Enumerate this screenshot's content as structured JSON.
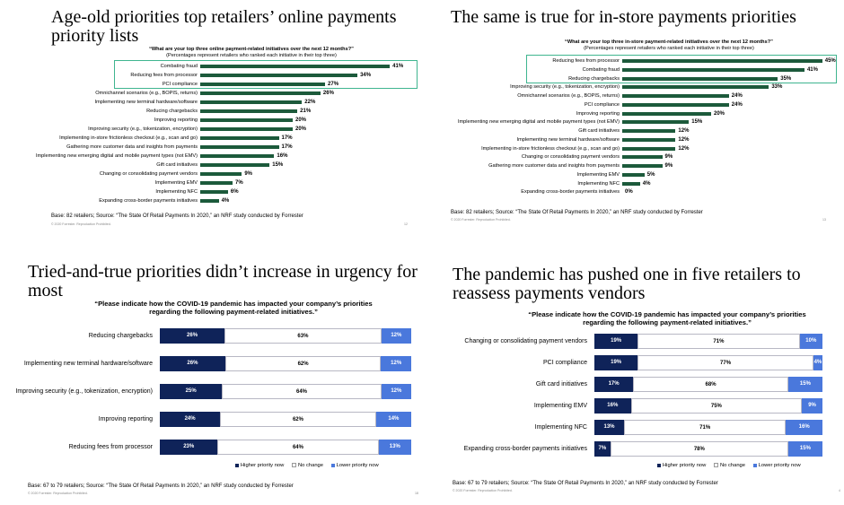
{
  "panels": [
    {
      "title": "Age-old priorities top retailers’ online payments priority lists",
      "question": "“What are your top three online payment-related initiatives over the next 12 months?”",
      "subquestion": "(Percentages represent retailers who ranked each initiative in their top three)",
      "base": "Base: 82 retailers; Source: “The State Of Retail Payments In 2020,” an NRF study conducted by Forrester",
      "copyright": "© 2020 Forrester. Reproduction Prohibited.",
      "page_number": "12"
    },
    {
      "title": "The same is true for in-store payments priorities",
      "question": "“What are your top three in-store payment-related initiatives over the next 12 months?”",
      "subquestion": "(Percentages represent retailers who ranked each initiative in their top three)",
      "base": "Base: 82 retailers; Source: “The State Of Retail Payments In 2020,” an NRF study conducted by Forrester",
      "copyright": "© 2020 Forrester. Reproduction Prohibited.",
      "page_number": "13"
    },
    {
      "title": "Tried-and-true priorities didn’t increase in urgency for most",
      "question": "“Please indicate how the COVID-19 pandemic has impacted your company’s priorities regarding the following payment-related initiatives.”",
      "base": "Base: 67 to 79 retailers; Source: “The State Of Retail Payments In 2020,” an NRF study conducted by Forrester",
      "copyright": "© 2020 Forrester. Reproduction Prohibited.",
      "page_number": "18"
    },
    {
      "title": "The pandemic has pushed one in five retailers to reassess payments vendors",
      "question": "“Please indicate how the COVID-19 pandemic has impacted your company’s priorities regarding the following payment-related initiatives.”",
      "base": "Base: 67 to 79 retailers; Source: “The State Of Retail Payments In 2020,” an NRF study conducted by Forrester",
      "copyright": "© 2020 Forrester. Reproduction Prohibited.",
      "page_number": "4"
    }
  ],
  "colors": {
    "bar_green": "#1c5a3b",
    "highlight_box": "#3fb58f",
    "higher": "#0f2359",
    "nochange": "#ffffff",
    "lower": "#4a78dc"
  },
  "chart_data": [
    {
      "type": "bar",
      "orientation": "horizontal",
      "categories": [
        "Combating fraud",
        "Reducing fees from processor",
        "PCI compliance",
        "Omnichannel scenarios (e.g., BOPIS, returns)",
        "Implementing new terminal hardware/software",
        "Reducing chargebacks",
        "Improving reporting",
        "Improving security (e.g., tokenization, encryption)",
        "Implementing in-store frictionless checkout (e.g., scan and go)",
        "Gathering more customer data and insights from payments",
        "Implementing new emerging digital and mobile payment types (not EMV)",
        "Gift card initiatives",
        "Changing or consolidating payment vendors",
        "Implementing EMV",
        "Implementing NFC",
        "Expanding cross-border payments initiatives"
      ],
      "values": [
        41,
        34,
        27,
        26,
        22,
        21,
        20,
        20,
        17,
        17,
        16,
        15,
        9,
        7,
        6,
        4
      ],
      "labels": [
        "41%",
        "34%",
        "27%",
        "26%",
        "22%",
        "21%",
        "20%",
        "20%",
        "17%",
        "17%",
        "16%",
        "15%",
        "9%",
        "7%",
        "6%",
        "4%"
      ],
      "highlighted_top": 3
    },
    {
      "type": "bar",
      "orientation": "horizontal",
      "categories": [
        "Reducing fees from processor",
        "Combating fraud",
        "Reducing chargebacks",
        "Improving security (e.g., tokenization, encryption)",
        "Omnichannel scenarios (e.g., BOPIS, returns)",
        "PCI compliance",
        "Improving reporting",
        "Implementing new emerging digital and mobile payment types (not EMV)",
        "Gift card initiatives",
        "Implementing new terminal hardware/software",
        "Implementing in-store frictionless checkout (e.g., scan and go)",
        "Changing or consolidating payment vendors",
        "Gathering more customer data and insights from payments",
        "Implementing EMV",
        "Implementing NFC",
        "Expanding cross-border payments initiatives"
      ],
      "values": [
        45,
        41,
        35,
        33,
        24,
        24,
        20,
        15,
        12,
        12,
        12,
        9,
        9,
        5,
        4,
        0
      ],
      "labels": [
        "45%",
        "41%",
        "35%",
        "33%",
        "24%",
        "24%",
        "20%",
        "15%",
        "12%",
        "12%",
        "12%",
        "9%",
        "9%",
        "5%",
        "4%",
        "0%"
      ],
      "highlighted_top": 3
    },
    {
      "type": "bar",
      "stacked": true,
      "orientation": "horizontal",
      "categories": [
        "Reducing chargebacks",
        "Implementing new terminal hardware/software",
        "Improving security (e.g., tokenization, encryption)",
        "Improving reporting",
        "Reducing fees from processor"
      ],
      "series": [
        {
          "name": "Higher priority now",
          "values": [
            26,
            26,
            25,
            24,
            23
          ],
          "labels": [
            "26%",
            "26%",
            "25%",
            "24%",
            "23%"
          ]
        },
        {
          "name": "No change",
          "values": [
            63,
            62,
            64,
            62,
            64
          ],
          "labels": [
            "63%",
            "62%",
            "64%",
            "62%",
            "64%"
          ]
        },
        {
          "name": "Lower priority now",
          "values": [
            12,
            12,
            12,
            14,
            13
          ],
          "labels": [
            "12%",
            "12%",
            "12%",
            "14%",
            "13%"
          ]
        }
      ],
      "legend": "bottom"
    },
    {
      "type": "bar",
      "stacked": true,
      "orientation": "horizontal",
      "categories": [
        "Changing or consolidating payment vendors",
        "PCI compliance",
        "Gift card initiatives",
        "Implementing EMV",
        "Implementing NFC",
        "Expanding cross-border payments initiatives"
      ],
      "series": [
        {
          "name": "Higher priority now",
          "values": [
            19,
            19,
            17,
            16,
            13,
            7
          ],
          "labels": [
            "19%",
            "19%",
            "17%",
            "16%",
            "13%",
            "7%"
          ]
        },
        {
          "name": "No change",
          "values": [
            71,
            77,
            68,
            75,
            71,
            78
          ],
          "labels": [
            "71%",
            "77%",
            "68%",
            "75%",
            "71%",
            "78%"
          ]
        },
        {
          "name": "Lower priority now",
          "values": [
            10,
            4,
            15,
            9,
            16,
            15
          ],
          "labels": [
            "10%",
            "4%",
            "15%",
            "9%",
            "16%",
            "15%"
          ]
        }
      ],
      "legend": "bottom"
    }
  ]
}
